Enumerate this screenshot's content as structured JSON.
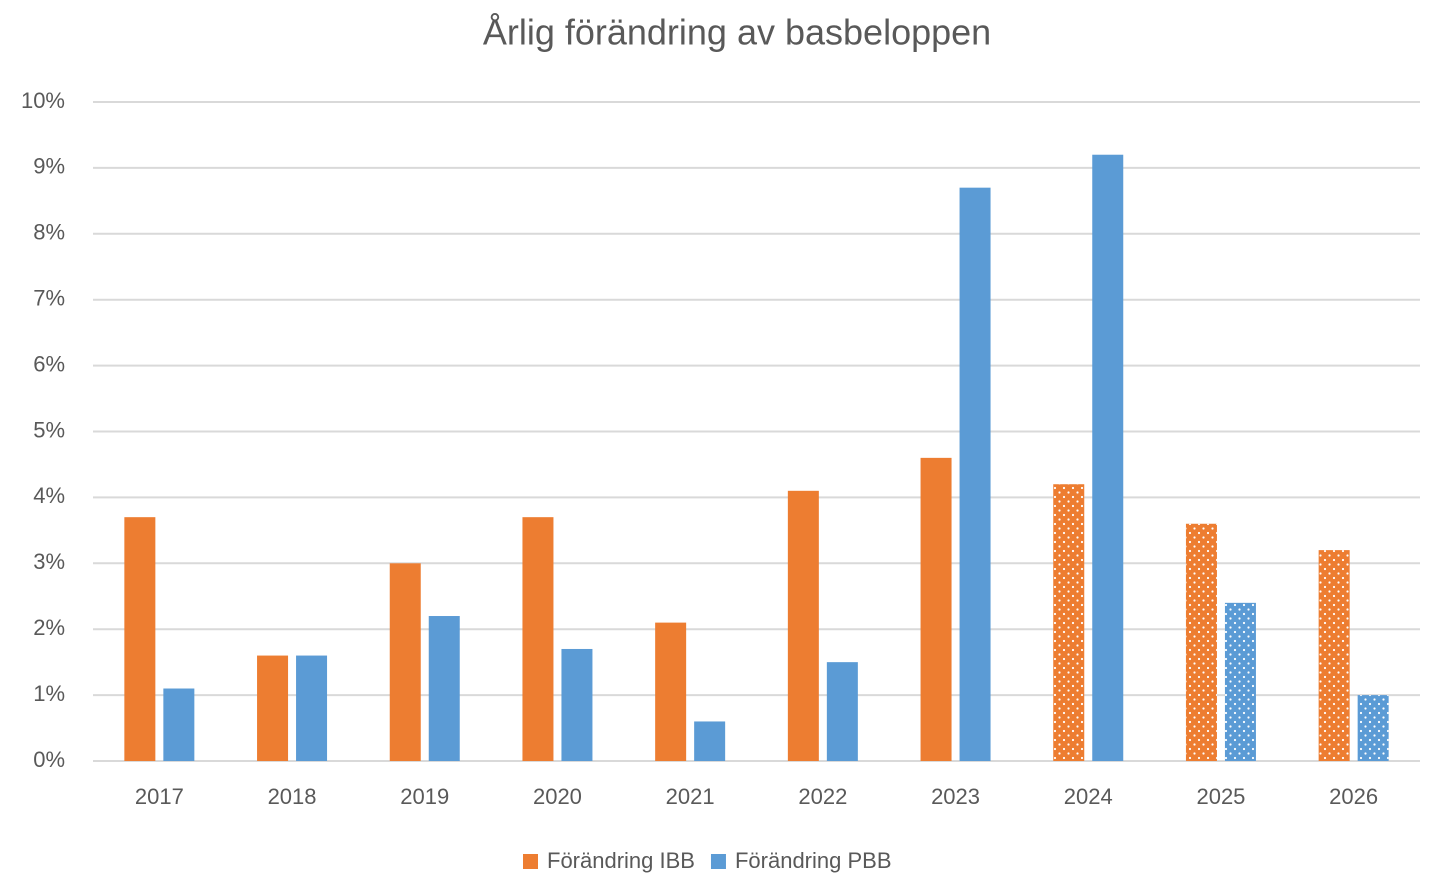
{
  "chart_data": {
    "type": "bar",
    "title": "Årlig förändring av basbeloppen",
    "categories": [
      "2017",
      "2018",
      "2019",
      "2020",
      "2021",
      "2022",
      "2023",
      "2024",
      "2025",
      "2026"
    ],
    "series": [
      {
        "name": "Förändring IBB",
        "color": "#ed7d31",
        "values": [
          3.7,
          1.6,
          3.0,
          3.7,
          2.1,
          4.1,
          4.6,
          4.2,
          3.6,
          3.2
        ],
        "dotted": [
          false,
          false,
          false,
          false,
          false,
          false,
          false,
          true,
          true,
          true
        ]
      },
      {
        "name": "Förändring PBB",
        "color": "#5b9bd5",
        "values": [
          1.1,
          1.6,
          2.2,
          1.7,
          0.6,
          1.5,
          8.7,
          9.2,
          2.4,
          1.0
        ],
        "dotted": [
          false,
          false,
          false,
          false,
          false,
          false,
          false,
          false,
          true,
          true
        ]
      }
    ],
    "ylim": [
      0,
      10
    ],
    "yticks": [
      {
        "value": 0,
        "label": "0%"
      },
      {
        "value": 1,
        "label": "1%"
      },
      {
        "value": 2,
        "label": "2%"
      },
      {
        "value": 3,
        "label": "3%"
      },
      {
        "value": 4,
        "label": "4%"
      },
      {
        "value": 5,
        "label": "5%"
      },
      {
        "value": 6,
        "label": "6%"
      },
      {
        "value": 7,
        "label": "7%"
      },
      {
        "value": 8,
        "label": "8%"
      },
      {
        "value": 9,
        "label": "9%"
      },
      {
        "value": 10,
        "label": "10%"
      }
    ],
    "grid": true,
    "legend": "bottom"
  }
}
